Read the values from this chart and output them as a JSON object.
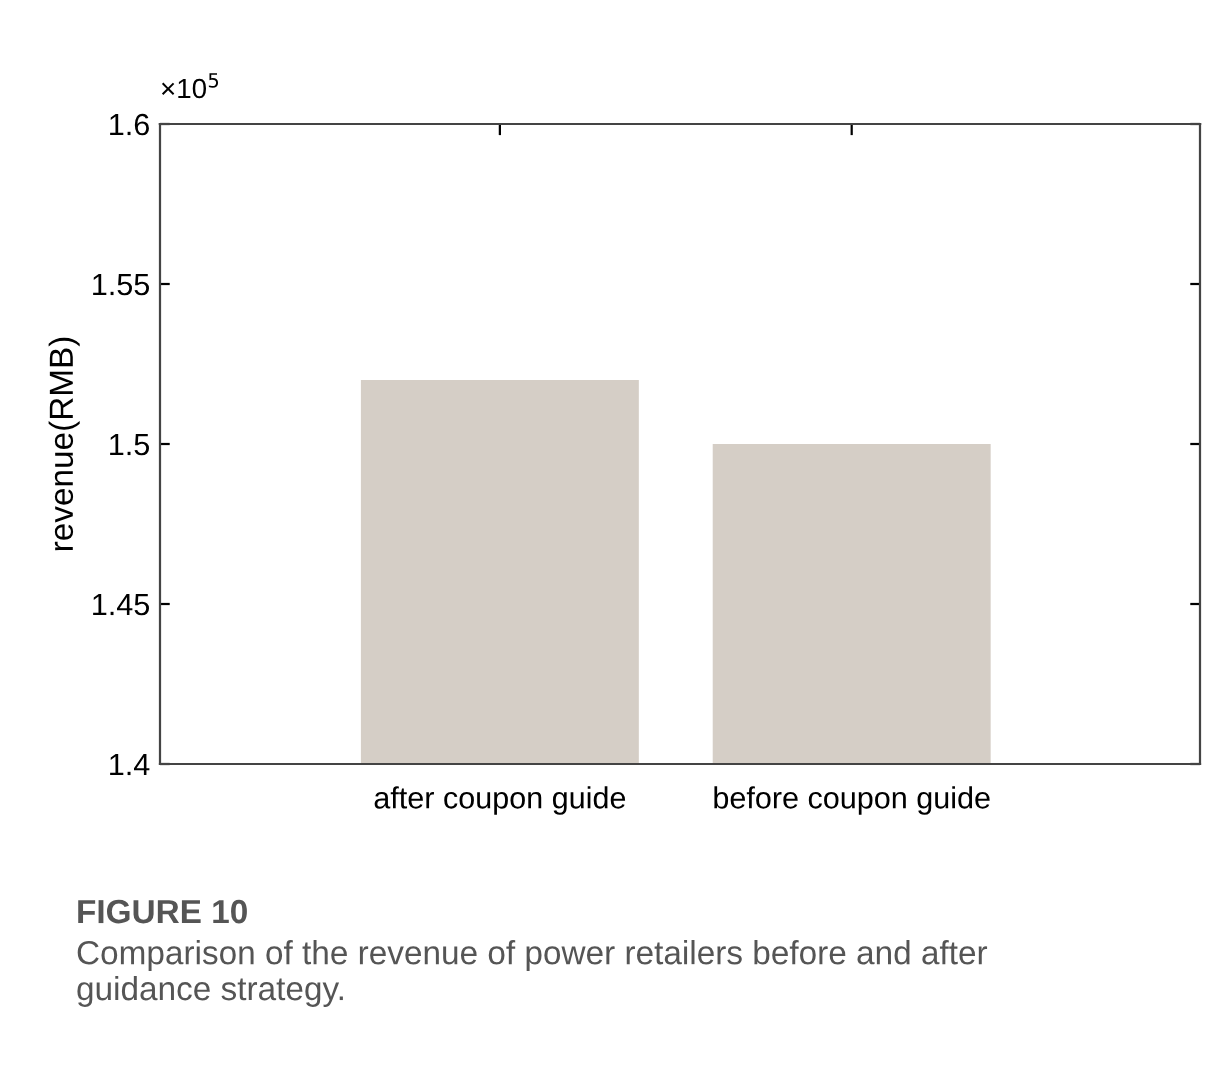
{
  "chart_data": {
    "type": "bar",
    "categories": [
      "after coupon guide",
      "before coupon guide"
    ],
    "values": [
      1.52,
      1.5
    ],
    "color": "#d5cec6",
    "ylabel": "revenue(RMB)",
    "ylim": [
      1.4,
      1.6
    ],
    "yticks": [
      1.4,
      1.45,
      1.5,
      1.55,
      1.6
    ],
    "grid": false,
    "annotations": [
      "×10$^{5}$",
      "FIGURE 10",
      "Comparison of the revenue of power retailers before and after guidance strategy."
    ]
  }
}
